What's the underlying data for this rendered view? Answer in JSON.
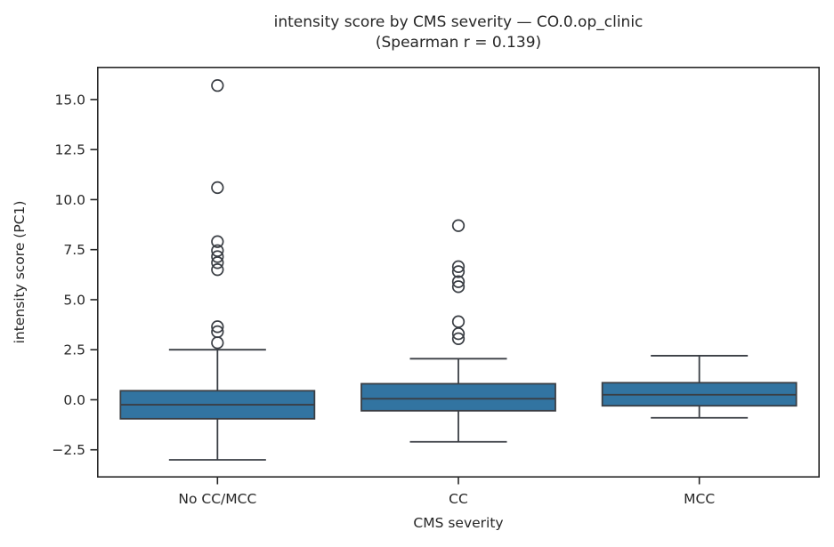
{
  "chart_data": {
    "type": "boxplot",
    "title": "intensity score by CMS severity — CO.0.op_clinic",
    "subtitle": "(Spearman r = 0.139)",
    "xlabel": "CMS severity",
    "ylabel": "intensity score (PC1)",
    "categories": [
      "No CC/MCC",
      "CC",
      "MCC"
    ],
    "ylim": [
      -3.89,
      16.64
    ],
    "yticks": [
      -2.5,
      0.0,
      2.5,
      5.0,
      7.5,
      10.0,
      12.5,
      15.0
    ],
    "ytick_labels": [
      "−2.5",
      "0.0",
      "2.5",
      "5.0",
      "7.5",
      "10.0",
      "12.5",
      "15.0"
    ],
    "grid": false,
    "legend": "none",
    "boxes": [
      {
        "category": "No CC/MCC",
        "whisker_low": -3.0,
        "q1": -0.95,
        "median": -0.25,
        "q3": 0.45,
        "whisker_high": 2.5,
        "outliers": [
          15.7,
          10.6,
          7.9,
          7.45,
          7.15,
          6.85,
          6.5,
          3.65,
          3.4,
          2.85
        ]
      },
      {
        "category": "CC",
        "whisker_low": -2.1,
        "q1": -0.55,
        "median": 0.05,
        "q3": 0.8,
        "whisker_high": 2.05,
        "outliers": [
          8.7,
          6.65,
          6.4,
          5.9,
          5.65,
          3.9,
          3.3,
          3.05
        ]
      },
      {
        "category": "MCC",
        "whisker_low": -0.9,
        "q1": -0.3,
        "median": 0.25,
        "q3": 0.85,
        "whisker_high": 2.2,
        "outliers": []
      }
    ],
    "colors": {
      "box_fill": "#3274a1",
      "box_line": "#3a3e44",
      "spine": "#262626",
      "background": "#ffffff"
    }
  }
}
